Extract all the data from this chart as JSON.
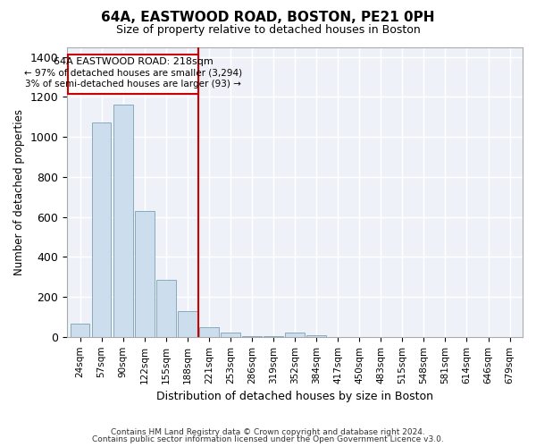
{
  "title": "64A, EASTWOOD ROAD, BOSTON, PE21 0PH",
  "subtitle": "Size of property relative to detached houses in Boston",
  "xlabel": "Distribution of detached houses by size in Boston",
  "ylabel": "Number of detached properties",
  "property_label": "64A EASTWOOD ROAD: 218sqm",
  "annotation_line1": "← 97% of detached houses are smaller (3,294)",
  "annotation_line2": "3% of semi-detached houses are larger (93) →",
  "footnote1": "Contains HM Land Registry data © Crown copyright and database right 2024.",
  "footnote2": "Contains public sector information licensed under the Open Government Licence v3.0.",
  "bar_color": "#ccdded",
  "bar_edge_color": "#88aabb",
  "vline_color": "#cc0000",
  "annotation_box_color": "#cc0000",
  "plot_bg_color": "#eef2f8",
  "fig_bg_color": "#ffffff",
  "grid_color": "#ffffff",
  "categories": [
    "24sqm",
    "57sqm",
    "90sqm",
    "122sqm",
    "155sqm",
    "188sqm",
    "221sqm",
    "253sqm",
    "286sqm",
    "319sqm",
    "352sqm",
    "384sqm",
    "417sqm",
    "450sqm",
    "483sqm",
    "515sqm",
    "548sqm",
    "581sqm",
    "614sqm",
    "646sqm",
    "679sqm"
  ],
  "values": [
    65,
    1070,
    1160,
    630,
    285,
    130,
    50,
    20,
    5,
    5,
    20,
    10,
    0,
    0,
    0,
    0,
    0,
    0,
    0,
    0,
    0
  ],
  "ylim": [
    0,
    1450
  ],
  "yticks": [
    0,
    200,
    400,
    600,
    800,
    1000,
    1200,
    1400
  ],
  "vline_x": 5.5
}
